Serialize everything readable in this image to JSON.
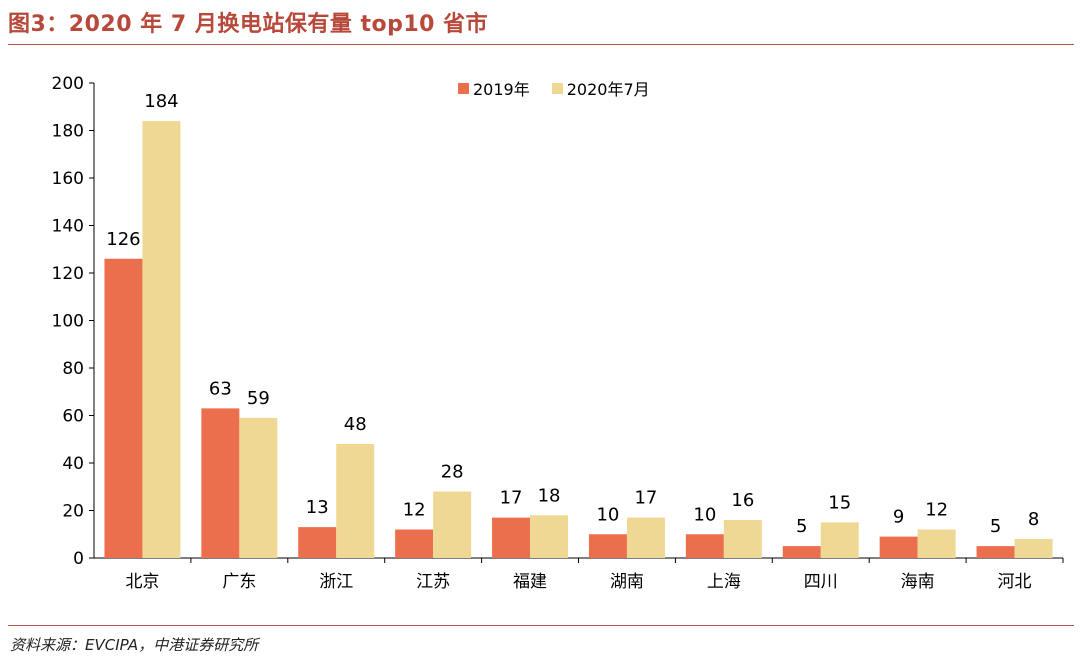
{
  "title": "图3：2020 年 7 月换电站保有量 top10 省市",
  "source": "资料来源：EVCIPA，中港证券研究所",
  "colors": {
    "accent": "#c0504d",
    "series_2019": "#eb6f4c",
    "series_2020": "#efd893"
  },
  "chart_data": {
    "type": "bar",
    "categories": [
      "北京",
      "广东",
      "浙江",
      "江苏",
      "福建",
      "湖南",
      "上海",
      "四川",
      "海南",
      "河北"
    ],
    "series": [
      {
        "name": "2019年",
        "values": [
          126,
          63,
          13,
          12,
          17,
          10,
          10,
          5,
          9,
          5
        ]
      },
      {
        "name": "2020年7月",
        "values": [
          184,
          59,
          48,
          28,
          18,
          17,
          16,
          15,
          12,
          8
        ]
      }
    ],
    "ylim": [
      0,
      200
    ],
    "yticks": [
      0,
      20,
      40,
      60,
      80,
      100,
      120,
      140,
      160,
      180,
      200
    ],
    "xlabel": "",
    "ylabel": "",
    "grid": false,
    "legend": "top-center",
    "data_labels": true
  }
}
